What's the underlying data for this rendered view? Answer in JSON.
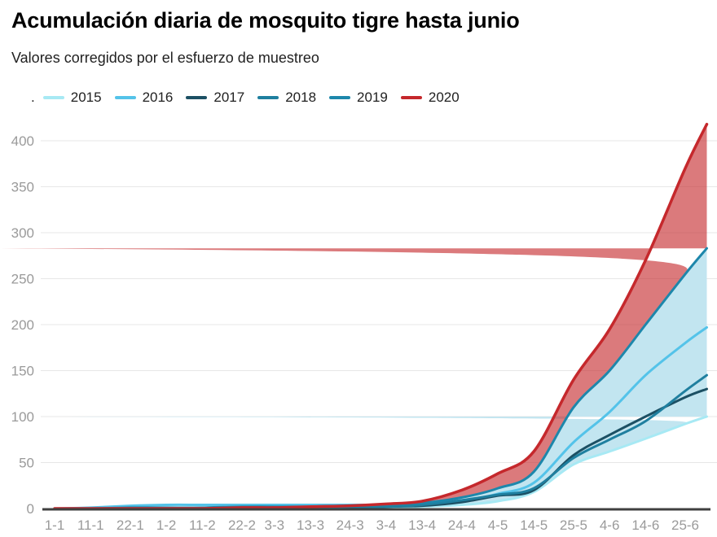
{
  "header": {
    "title": "Acumulación diaria de mosquito tigre hasta junio",
    "subtitle": "Valores corregidos por el esfuerzo de muestreo"
  },
  "legend": {
    "prefix": "."
  },
  "axis_colors": {
    "gridline": "#e7e7e7",
    "axis_line": "#3f3f3f",
    "tick_label": "#9a9a9a"
  },
  "chart_data": {
    "type": "area",
    "title": "Acumulación diaria de mosquito tigre hasta junio",
    "subtitle": "Valores corregidos por el esfuerzo de muestreo",
    "xlabel": "",
    "ylabel": "",
    "grid": "horizontal",
    "legend_position": "top",
    "ylim": [
      0,
      420
    ],
    "y_ticks": [
      0,
      50,
      100,
      150,
      200,
      250,
      300,
      350,
      400
    ],
    "x_labels": [
      "1-1",
      "11-1",
      "22-1",
      "1-2",
      "11-2",
      "22-2",
      "3-3",
      "13-3",
      "24-3",
      "3-4",
      "13-4",
      "24-4",
      "4-5",
      "14-5",
      "25-5",
      "4-6",
      "14-6",
      "25-6"
    ],
    "x_days": [
      0,
      10,
      21,
      31,
      41,
      52,
      61,
      71,
      82,
      92,
      102,
      113,
      123,
      133,
      144,
      154,
      164,
      175,
      181
    ],
    "x_range_days": [
      0,
      181
    ],
    "series": [
      {
        "name": "2015",
        "color": "#a7e9f4",
        "width": 3,
        "values": [
          0,
          0,
          0,
          0,
          0,
          0,
          0,
          0,
          1,
          1,
          2,
          4,
          8,
          18,
          48,
          62,
          76,
          92,
          100
        ]
      },
      {
        "name": "2016",
        "color": "#54c3e9",
        "width": 3,
        "values": [
          0,
          1,
          3,
          4,
          4,
          4,
          4,
          4,
          4,
          4,
          5,
          8,
          16,
          28,
          72,
          105,
          145,
          180,
          197
        ]
      },
      {
        "name": "2017",
        "color": "#1c5064",
        "width": 3,
        "values": [
          0,
          0,
          0,
          0,
          0,
          0,
          1,
          1,
          1,
          2,
          3,
          7,
          14,
          20,
          58,
          80,
          100,
          121,
          130
        ]
      },
      {
        "name": "2018",
        "color": "#1f7f9f",
        "width": 3,
        "values": [
          0,
          0,
          0,
          0,
          0,
          1,
          1,
          1,
          2,
          2,
          4,
          9,
          15,
          22,
          55,
          75,
          95,
          128,
          145
        ]
      },
      {
        "name": "2019",
        "color": "#1d87ab",
        "width": 3,
        "values": [
          0,
          0,
          1,
          1,
          1,
          2,
          2,
          2,
          3,
          4,
          6,
          12,
          22,
          40,
          110,
          150,
          200,
          255,
          283
        ]
      },
      {
        "name": "2020",
        "color": "#c5282c",
        "width": 3.5,
        "values": [
          0,
          0,
          0,
          0,
          0,
          1,
          1,
          2,
          3,
          5,
          8,
          20,
          38,
          62,
          140,
          195,
          270,
          370,
          418
        ]
      }
    ],
    "bands": [
      {
        "upper": "2019",
        "lower": "2015",
        "color": "#c2e5f0",
        "opacity": 1
      },
      {
        "upper": "2020",
        "lower": "2019",
        "color": "#c5282c",
        "opacity": 0.62
      }
    ]
  }
}
